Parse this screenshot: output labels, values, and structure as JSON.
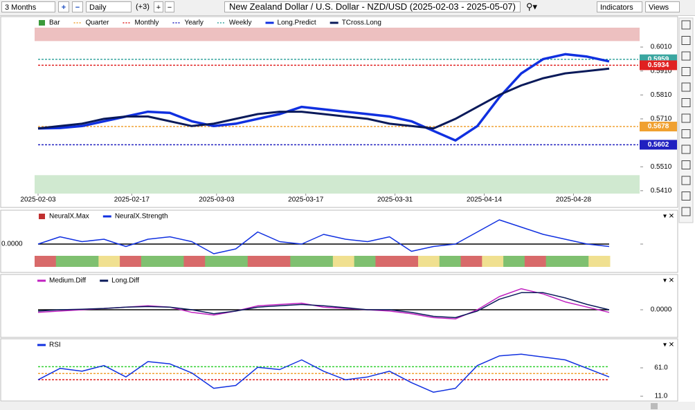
{
  "toolbar": {
    "range": "3 Months",
    "interval": "Daily",
    "offset": "(+3)",
    "title": "New Zealand Dollar / U.S. Dollar - NZD/USD (2025-02-03 - 2025-05-07)",
    "indicators": "Indicators",
    "views": "Views"
  },
  "panels": [
    {
      "type": "line",
      "legend": [
        {
          "name": "Bar",
          "color": "#3a9a3a",
          "style": "box"
        },
        {
          "name": "Quarter",
          "color": "#f0a030",
          "style": "dot"
        },
        {
          "name": "Monthly",
          "color": "#e02020",
          "style": "dot"
        },
        {
          "name": "Yearly",
          "color": "#2020c0",
          "style": "dot"
        },
        {
          "name": "Weekly",
          "color": "#3aa6a0",
          "style": "dot"
        },
        {
          "name": "Long.Predict",
          "color": "#1030e0",
          "style": "solid"
        },
        {
          "name": "TCross.Long",
          "color": "#0a1a5a",
          "style": "solid"
        }
      ],
      "xlim": [
        0,
        64
      ],
      "xticks": [
        {
          "value": 0,
          "label": "2025-02-03"
        },
        {
          "value": 10.5,
          "label": "2025-02-17"
        },
        {
          "value": 20,
          "label": "2025-03-03"
        },
        {
          "value": 30,
          "label": "2025-03-17"
        },
        {
          "value": 40,
          "label": "2025-03-31"
        },
        {
          "value": 50,
          "label": "2025-04-14"
        },
        {
          "value": 60,
          "label": "2025-04-28"
        }
      ],
      "ylim": [
        0.5398,
        0.6091
      ],
      "yticks": [
        {
          "value": 0.541,
          "label": "0.5410"
        },
        {
          "value": 0.551,
          "label": "0.5510"
        },
        {
          "value": 0.571,
          "label": "0.5710"
        },
        {
          "value": 0.581,
          "label": "0.5810"
        },
        {
          "value": 0.591,
          "label": "0.5910"
        },
        {
          "value": 0.601,
          "label": "0.6010"
        }
      ],
      "bands": [
        {
          "range": [
            0.6035,
            0.6091
          ],
          "color": "#e8b0b0"
        },
        {
          "range": [
            0.5398,
            0.5475
          ],
          "color": "#c4e4c4"
        }
      ],
      "levels": [
        {
          "value": 0.5959,
          "label": "0.5959",
          "color": "#3aa6a0"
        },
        {
          "value": 0.5934,
          "label": "0.5934",
          "color": "#e02020"
        },
        {
          "value": 0.5678,
          "label": "0.5678",
          "color": "#f0a030"
        },
        {
          "value": 0.5602,
          "label": "0.5602",
          "color": "#2020c0"
        }
      ],
      "series": [
        {
          "color": "#1030e0",
          "width": 3.5,
          "values": [
            0.567,
            0.5672,
            0.568,
            0.57,
            0.572,
            0.574,
            0.5735,
            0.57,
            0.568,
            0.569,
            0.571,
            0.573,
            0.576,
            0.575,
            0.574,
            0.573,
            0.572,
            0.57,
            0.566,
            0.562,
            0.568,
            0.58,
            0.59,
            0.596,
            0.598,
            0.597,
            0.595
          ]
        },
        {
          "color": "#0a1a5a",
          "width": 3,
          "values": [
            0.567,
            0.568,
            0.569,
            0.571,
            0.572,
            0.572,
            0.57,
            0.568,
            0.569,
            0.571,
            0.573,
            0.574,
            0.574,
            0.573,
            0.572,
            0.571,
            0.569,
            0.568,
            0.567,
            0.571,
            0.576,
            0.581,
            0.585,
            0.588,
            0.59,
            0.591,
            0.592
          ]
        }
      ]
    },
    {
      "type": "line",
      "legend": [
        {
          "name": "NeuralX.Max",
          "color": "#c03030",
          "style": "box"
        },
        {
          "name": "NeuralX.Strength",
          "color": "#1030e0",
          "style": "solid"
        }
      ],
      "ylim": [
        -1,
        1
      ],
      "yticks": [
        {
          "value": 0,
          "label": "0.0000",
          "side": "left"
        }
      ],
      "strip": [
        "r",
        "g",
        "g",
        "y",
        "r",
        "g",
        "g",
        "r",
        "g",
        "g",
        "r",
        "r",
        "g",
        "g",
        "y",
        "g",
        "r",
        "r",
        "y",
        "g",
        "r",
        "y",
        "g",
        "r",
        "g",
        "g",
        "y"
      ],
      "series": [
        {
          "color": "#1030e0",
          "width": 1.5,
          "values": [
            0,
            0.3,
            0.1,
            0.2,
            -0.1,
            0.2,
            0.3,
            0.1,
            -0.4,
            -0.2,
            0.5,
            0.1,
            0.0,
            0.4,
            0.2,
            0.1,
            0.3,
            -0.3,
            -0.1,
            0.0,
            0.5,
            1.0,
            0.7,
            0.4,
            0.2,
            0.0,
            -0.1
          ]
        }
      ]
    },
    {
      "type": "line",
      "legend": [
        {
          "name": "Medium.Diff",
          "color": "#c020c0",
          "style": "solid"
        },
        {
          "name": "Long.Diff",
          "color": "#0a1a5a",
          "style": "solid"
        }
      ],
      "ylim": [
        -1,
        1
      ],
      "yticks": [
        {
          "value": 0,
          "label": "0.0000",
          "side": "right"
        }
      ],
      "series": [
        {
          "color": "#c020c0",
          "width": 1.5,
          "values": [
            -0.1,
            -0.05,
            0.0,
            0.05,
            0.1,
            0.15,
            0.1,
            -0.1,
            -0.2,
            -0.05,
            0.15,
            0.2,
            0.25,
            0.1,
            0.05,
            0.0,
            -0.05,
            -0.15,
            -0.3,
            -0.35,
            0.0,
            0.5,
            0.8,
            0.6,
            0.3,
            0.1,
            -0.1
          ]
        },
        {
          "color": "#0a1a5a",
          "width": 1.5,
          "values": [
            -0.05,
            0.0,
            0.02,
            0.05,
            0.1,
            0.12,
            0.1,
            0.0,
            -0.15,
            -0.05,
            0.1,
            0.15,
            0.2,
            0.15,
            0.08,
            0.0,
            0.0,
            -0.1,
            -0.25,
            -0.3,
            -0.05,
            0.4,
            0.65,
            0.65,
            0.45,
            0.2,
            0.0
          ]
        }
      ]
    },
    {
      "type": "line",
      "legend": [
        {
          "name": "RSI",
          "color": "#1030e0",
          "style": "solid"
        }
      ],
      "ylim": [
        5,
        100
      ],
      "yticks": [
        {
          "value": 61,
          "label": "61.0",
          "side": "right"
        },
        {
          "value": 11,
          "label": "11.0",
          "side": "right"
        }
      ],
      "hlines": [
        {
          "value": 63,
          "color": "#30d030"
        },
        {
          "value": 51,
          "color": "#f0a030"
        },
        {
          "value": 40,
          "color": "#e02020"
        }
      ],
      "series": [
        {
          "color": "#1030e0",
          "width": 1.5,
          "values": [
            40,
            60,
            55,
            65,
            45,
            72,
            68,
            52,
            25,
            30,
            62,
            58,
            75,
            55,
            40,
            45,
            55,
            35,
            18,
            25,
            65,
            82,
            85,
            80,
            75,
            60,
            45
          ]
        }
      ]
    }
  ]
}
